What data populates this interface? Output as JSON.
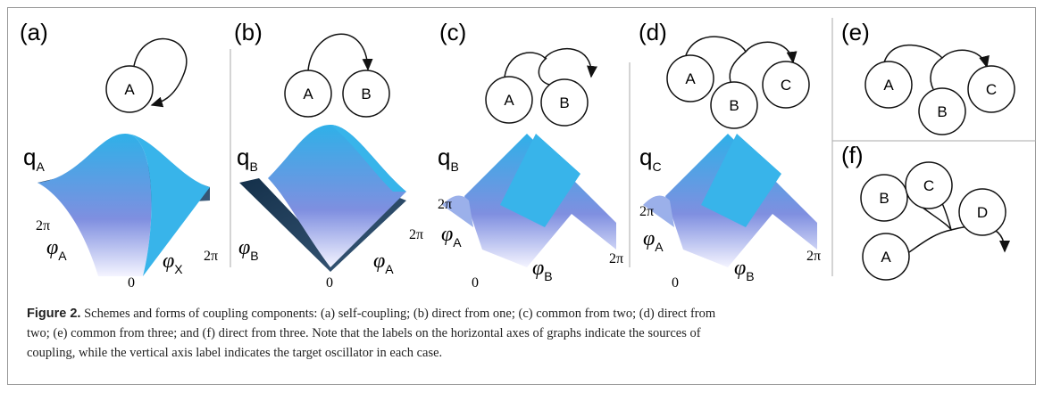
{
  "panels": [
    {
      "label": "(a)",
      "nodes": [
        "A"
      ],
      "z": {
        "sym": "q",
        "sub": "A"
      },
      "y": {
        "sym": "φ",
        "sub": "A"
      },
      "x": {
        "sym": "φ",
        "sub": "X"
      },
      "ticks": [
        "2π",
        "0",
        "2π"
      ]
    },
    {
      "label": "(b)",
      "nodes": [
        "A",
        "B"
      ],
      "z": {
        "sym": "q",
        "sub": "B"
      },
      "y": {
        "sym": "φ",
        "sub": "B"
      },
      "x": {
        "sym": "φ",
        "sub": "A"
      },
      "ticks": [
        "0",
        "2π"
      ]
    },
    {
      "label": "(c)",
      "nodes": [
        "A",
        "B"
      ],
      "z": {
        "sym": "q",
        "sub": "B"
      },
      "y": {
        "sym": "φ",
        "sub": "A"
      },
      "x": {
        "sym": "φ",
        "sub": "B"
      },
      "ticks": [
        "2π",
        "0",
        "2π"
      ]
    },
    {
      "label": "(d)",
      "nodes": [
        "A",
        "B",
        "C"
      ],
      "z": {
        "sym": "q",
        "sub": "C"
      },
      "y": {
        "sym": "φ",
        "sub": "A"
      },
      "x": {
        "sym": "φ",
        "sub": "B"
      },
      "ticks": [
        "2π",
        "0",
        "2π"
      ]
    },
    {
      "label": "(e)",
      "nodes": [
        "A",
        "B",
        "C"
      ]
    },
    {
      "label": "(f)",
      "nodes": [
        "B",
        "C",
        "D",
        "A"
      ]
    }
  ],
  "caption": {
    "label": "Figure 2.",
    "lines": [
      " Schemes and forms of coupling components: (a) self-coupling; (b) direct from one; (c) common from two; (d) direct from",
      "two; (e) common from three; and (f) direct from three. Note that the labels on the horizontal axes of graphs indicate the sources of",
      "coupling, while the vertical axis label indicates the target oscillator in each case."
    ]
  }
}
